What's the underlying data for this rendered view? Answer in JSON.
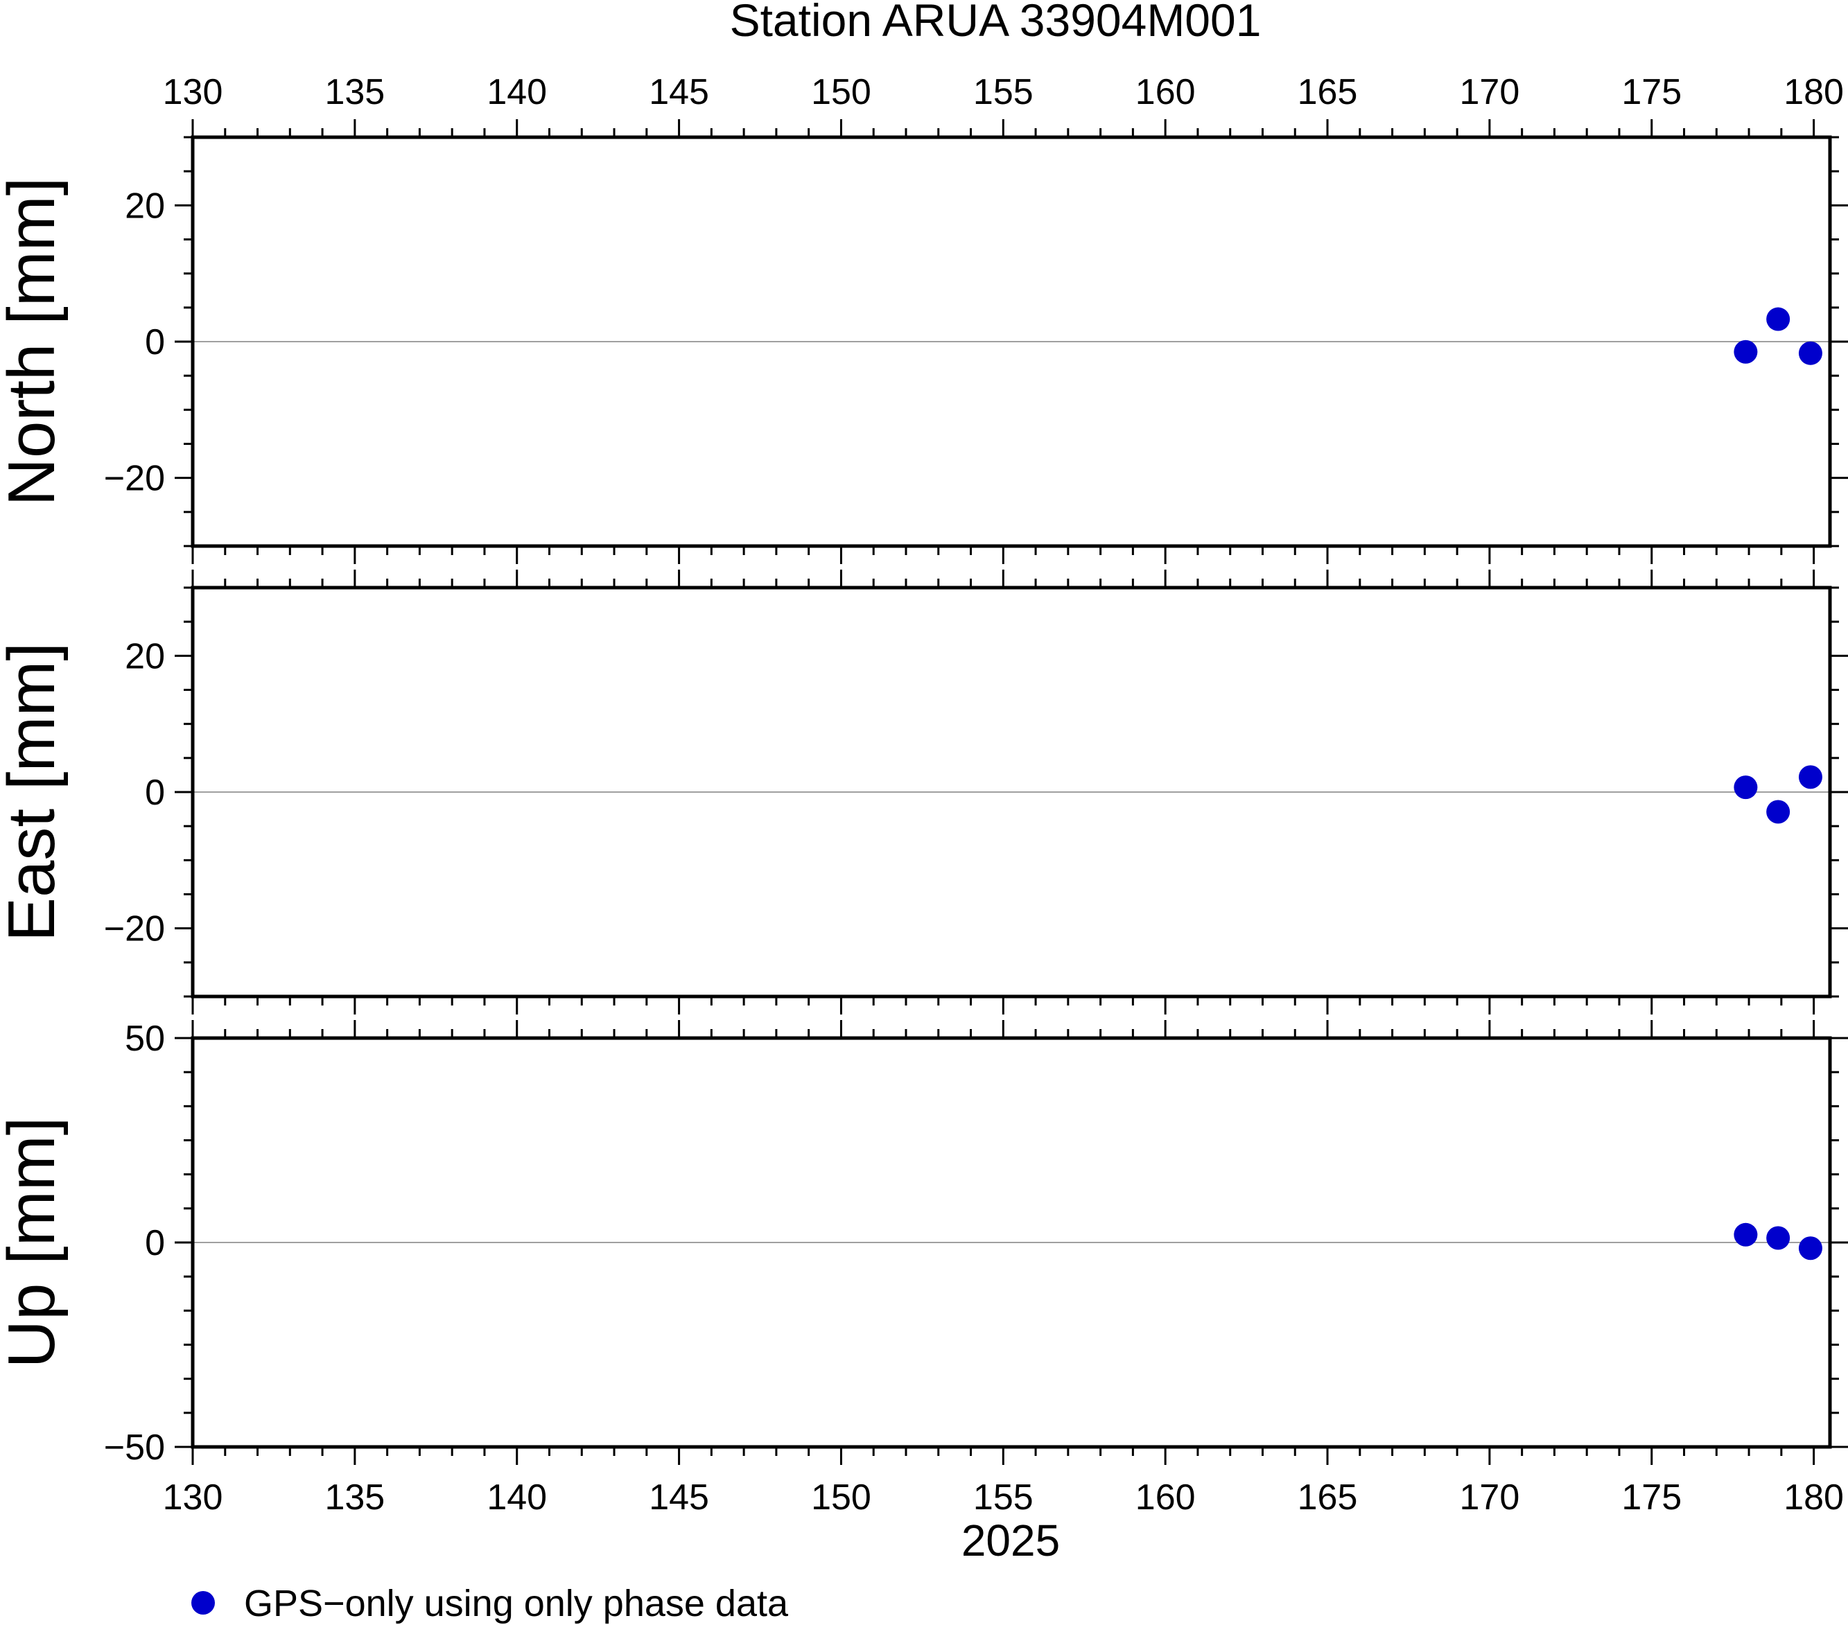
{
  "chart_data": {
    "type": "scatter",
    "title": "Station ARUA 33904M001",
    "xlabel": "2025",
    "xlim": [
      130,
      180.5
    ],
    "xticks": [
      130,
      135,
      140,
      145,
      150,
      155,
      160,
      165,
      170,
      175,
      180
    ],
    "legend": {
      "position": "bottom-left",
      "entries": [
        {
          "label": "GPS−only using only phase data",
          "color": "#0000cc"
        }
      ]
    },
    "panels": [
      {
        "ylabel": "North [mm]",
        "ylim": [
          -30,
          30
        ],
        "yticks": [
          20,
          0,
          -20
        ],
        "ytick_labels": [
          "20",
          "0",
          "−20"
        ],
        "zero_line": true,
        "series": [
          {
            "x": [
              177.9,
              178.9,
              179.9
            ],
            "y": [
              -1.5,
              3.3,
              -1.7
            ],
            "color": "#0000cc"
          }
        ]
      },
      {
        "ylabel": "East [mm]",
        "ylim": [
          -30,
          30
        ],
        "yticks": [
          20,
          0,
          -20
        ],
        "ytick_labels": [
          "20",
          "0",
          "−20"
        ],
        "zero_line": true,
        "series": [
          {
            "x": [
              177.9,
              178.9,
              179.9
            ],
            "y": [
              0.7,
              -2.9,
              2.2
            ],
            "color": "#0000cc"
          }
        ]
      },
      {
        "ylabel": "Up [mm]",
        "ylim": [
          -50,
          50
        ],
        "yticks": [
          50,
          0,
          -50
        ],
        "ytick_labels": [
          "50",
          "0",
          "−50"
        ],
        "zero_line": true,
        "series": [
          {
            "x": [
              177.9,
              178.9,
              179.9
            ],
            "y": [
              1.9,
              1.1,
              -1.4
            ],
            "color": "#0000cc"
          }
        ]
      }
    ]
  }
}
